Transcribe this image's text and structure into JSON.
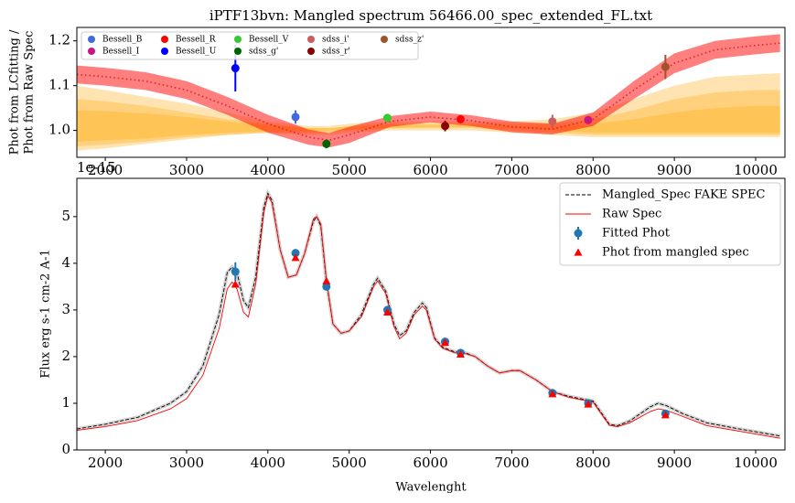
{
  "chart_data": [
    {
      "type": "errorbar",
      "title": "iPTF13bvn: Mangled spectrum 56466.00_spec_extended_FL.txt",
      "ylabel": [
        "Phot from LCfitting /",
        "Phot from Raw Spec"
      ],
      "xlim": [
        1650,
        10360
      ],
      "ylim": [
        0.94,
        1.23
      ],
      "xticks": [
        2000,
        3000,
        4000,
        5000,
        6000,
        7000,
        8000,
        9000,
        10000
      ],
      "yticks": [
        {
          "value": 1,
          "label": "1.0"
        },
        1.1,
        1.2
      ],
      "legend": "upper left",
      "legend_columns": 5,
      "x": [
        1650,
        2000,
        2500,
        3000,
        3500,
        4000,
        4500,
        4750,
        5000,
        5500,
        6000,
        6500,
        7000,
        7500,
        8000,
        8500,
        9000,
        9500,
        10000,
        10300
      ],
      "bands": [
        {
          "color": "#ffa500",
          "alpha": 0.3,
          "lower": [
            0.955,
            0.96,
            0.97,
            0.98,
            0.99,
            0.995,
            0.99,
            0.99,
            0.995,
            1.0,
            1.0,
            1.0,
            0.995,
            0.99,
            0.985,
            0.985,
            0.985,
            0.985,
            0.985,
            0.985
          ],
          "upper": [
            1.1,
            1.09,
            1.075,
            1.06,
            1.04,
            1.02,
            1.01,
            1.01,
            1.015,
            1.02,
            1.02,
            1.02,
            1.02,
            1.025,
            1.04,
            1.07,
            1.1,
            1.12,
            1.125,
            1.128
          ]
        },
        {
          "color": "#ffa500",
          "alpha": 0.3,
          "lower": [
            0.965,
            0.968,
            0.975,
            0.985,
            0.99,
            0.995,
            0.995,
            0.995,
            1.0,
            1.005,
            1.005,
            1.005,
            1.0,
            0.995,
            0.99,
            0.99,
            0.99,
            0.99,
            0.99,
            0.99
          ],
          "upper": [
            1.07,
            1.065,
            1.055,
            1.04,
            1.025,
            1.015,
            1.005,
            1.005,
            1.01,
            1.015,
            1.015,
            1.015,
            1.015,
            1.015,
            1.025,
            1.045,
            1.07,
            1.085,
            1.09,
            1.09
          ]
        },
        {
          "color": "#ffa500",
          "alpha": 0.3,
          "lower": [
            0.975,
            0.978,
            0.982,
            0.99,
            0.995,
            0.998,
            0.998,
            1.0,
            1.002,
            1.005,
            1.008,
            1.008,
            1.005,
            1.0,
            0.995,
            0.995,
            0.995,
            0.995,
            0.995,
            0.995
          ],
          "upper": [
            1.045,
            1.043,
            1.038,
            1.03,
            1.02,
            1.012,
            1.005,
            1.005,
            1.008,
            1.012,
            1.012,
            1.012,
            1.01,
            1.01,
            1.015,
            1.025,
            1.04,
            1.05,
            1.055,
            1.055
          ]
        },
        {
          "color": "#ff0000",
          "alpha": 0.5,
          "lower": [
            1.105,
            1.1,
            1.09,
            1.07,
            1.035,
            0.995,
            0.968,
            0.962,
            0.972,
            1.008,
            1.018,
            1.01,
            0.996,
            0.991,
            1.01,
            1.07,
            1.128,
            1.16,
            1.17,
            1.175
          ],
          "upper": [
            1.145,
            1.14,
            1.13,
            1.11,
            1.075,
            1.035,
            1.002,
            0.994,
            1.008,
            1.032,
            1.042,
            1.034,
            1.02,
            1.015,
            1.04,
            1.11,
            1.172,
            1.2,
            1.21,
            1.215
          ]
        }
      ],
      "lines": [
        {
          "color": "#d62728",
          "style": "dotted",
          "values": [
            1.125,
            1.12,
            1.11,
            1.09,
            1.055,
            1.015,
            0.985,
            0.978,
            0.99,
            1.02,
            1.03,
            1.022,
            1.008,
            1.003,
            1.025,
            1.09,
            1.15,
            1.18,
            1.19,
            1.195
          ]
        }
      ],
      "points": [
        {
          "name": "Bessell_B",
          "color": "#4169e1",
          "x": [
            4340
          ],
          "values": [
            1.03
          ],
          "errors": [
            0.015
          ]
        },
        {
          "name": "Bessell_I",
          "color": "#c71585",
          "x": [
            7940
          ],
          "values": [
            1.023
          ],
          "errors": [
            0.008
          ]
        },
        {
          "name": "Bessell_R",
          "color": "#ff0000",
          "x": [
            6370
          ],
          "values": [
            1.025
          ],
          "errors": [
            0.008
          ]
        },
        {
          "name": "Bessell_U",
          "color": "#0000ff",
          "x": [
            3600
          ],
          "values": [
            1.139
          ],
          "errors": [
            0.052
          ]
        },
        {
          "name": "Bessell_V",
          "color": "#32cd32",
          "x": [
            5470
          ],
          "values": [
            1.028
          ],
          "errors": [
            0.005
          ]
        },
        {
          "name": "sdss_g'",
          "color": "#006400",
          "x": [
            4720
          ],
          "values": [
            0.97
          ],
          "errors": [
            0.01
          ]
        },
        {
          "name": "sdss_i'",
          "color": "#cd5c5c",
          "x": [
            7500
          ],
          "values": [
            1.02
          ],
          "errors": [
            0.015
          ]
        },
        {
          "name": "sdss_r'",
          "color": "#8b0000",
          "x": [
            6180
          ],
          "values": [
            1.01
          ],
          "errors": [
            0.012
          ]
        },
        {
          "name": "sdss_z'",
          "color": "#a0522d",
          "x": [
            8890
          ],
          "values": [
            1.142
          ],
          "errors": [
            0.027
          ]
        }
      ]
    },
    {
      "type": "line",
      "xlabel": "Wavelenght",
      "ylabel": "Flux erg s-1 cm-2 A-1",
      "offset_label": "1e-15",
      "xlim": [
        1650,
        10360
      ],
      "ylim": [
        0,
        5.82
      ],
      "xticks": [
        2000,
        3000,
        4000,
        5000,
        6000,
        7000,
        8000,
        9000,
        10000
      ],
      "yticks": [
        0,
        1,
        2,
        3,
        4,
        5
      ],
      "legend": "upper right",
      "x": [
        1650,
        2000,
        2400,
        2800,
        3000,
        3200,
        3400,
        3500,
        3560,
        3620,
        3700,
        3760,
        3850,
        3950,
        4000,
        4050,
        4150,
        4250,
        4350,
        4450,
        4560,
        4600,
        4650,
        4720,
        4800,
        4900,
        5000,
        5150,
        5300,
        5350,
        5450,
        5550,
        5620,
        5700,
        5800,
        5900,
        5950,
        6050,
        6150,
        6300,
        6400,
        6550,
        6700,
        6850,
        7000,
        7100,
        7300,
        7500,
        7700,
        7900,
        8000,
        8100,
        8200,
        8300,
        8450,
        8700,
        8800,
        8900,
        9100,
        9400,
        9800,
        10300
      ],
      "lines": [
        {
          "name": "Mangled_Spec FAKE SPEC",
          "color": "#000000",
          "style": "dashed",
          "halo": "#c0c0c0",
          "values": [
            0.45,
            0.55,
            0.7,
            1.0,
            1.25,
            1.8,
            2.9,
            3.8,
            3.92,
            3.8,
            3.2,
            3.05,
            3.7,
            5.2,
            5.5,
            5.35,
            4.3,
            3.7,
            3.75,
            4.2,
            4.9,
            5.0,
            4.8,
            3.6,
            2.7,
            2.5,
            2.55,
            2.9,
            3.55,
            3.68,
            3.4,
            2.7,
            2.45,
            2.55,
            2.95,
            3.15,
            3.05,
            2.4,
            2.2,
            2.1,
            2.1,
            2.0,
            1.8,
            1.65,
            1.7,
            1.7,
            1.5,
            1.25,
            1.15,
            1.08,
            1.05,
            0.8,
            0.55,
            0.52,
            0.62,
            0.92,
            1.0,
            0.95,
            0.78,
            0.58,
            0.45,
            0.3
          ]
        },
        {
          "name": "Raw Spec",
          "color": "#ff0000",
          "style": "solid",
          "values": [
            0.42,
            0.5,
            0.63,
            0.88,
            1.1,
            1.6,
            2.6,
            3.45,
            3.6,
            3.45,
            2.95,
            2.85,
            3.55,
            5.1,
            5.45,
            5.3,
            4.3,
            3.7,
            3.75,
            4.2,
            4.95,
            5.0,
            4.85,
            3.65,
            2.7,
            2.5,
            2.55,
            2.85,
            3.5,
            3.62,
            3.35,
            2.65,
            2.38,
            2.5,
            2.9,
            3.08,
            3.0,
            2.38,
            2.18,
            2.08,
            2.08,
            2.0,
            1.8,
            1.65,
            1.7,
            1.7,
            1.5,
            1.25,
            1.13,
            1.06,
            1.03,
            0.78,
            0.53,
            0.5,
            0.58,
            0.82,
            0.88,
            0.85,
            0.72,
            0.52,
            0.4,
            0.25
          ]
        }
      ],
      "points": [
        {
          "name": "Fitted Phot",
          "color": "#1f77b4",
          "marker": "circle",
          "x": [
            3600,
            4340,
            4720,
            5470,
            6180,
            6370,
            7500,
            7940,
            8890
          ],
          "values": [
            3.82,
            4.22,
            3.5,
            3.0,
            2.32,
            2.08,
            1.22,
            1.0,
            0.78
          ],
          "errors": [
            0.2,
            0.05,
            0.05,
            0.05,
            0.04,
            0.03,
            0.03,
            0.03,
            0.03
          ]
        },
        {
          "name": "Phot from mangled spec",
          "color": "#ff0000",
          "marker": "triangle",
          "x": [
            3600,
            4340,
            4720,
            5470,
            6180,
            6370,
            7500,
            7940,
            8890
          ],
          "values": [
            3.55,
            4.12,
            3.62,
            2.95,
            2.3,
            2.05,
            1.2,
            0.98,
            0.75
          ]
        }
      ]
    }
  ]
}
